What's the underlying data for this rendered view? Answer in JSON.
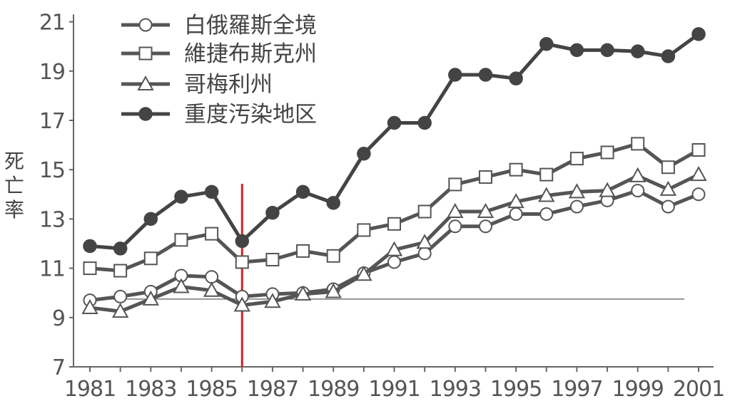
{
  "chart_data": {
    "type": "line",
    "title": "",
    "xlabel": "",
    "ylabel": "死亡率",
    "x": [
      1981,
      1982,
      1983,
      1984,
      1985,
      1986,
      1987,
      1988,
      1989,
      1990,
      1991,
      1992,
      1993,
      1994,
      1995,
      1996,
      1997,
      1998,
      1999,
      2000,
      2001
    ],
    "x_tick_labels": [
      "1981",
      "1983",
      "1985",
      "1987",
      "1989",
      "1991",
      "1993",
      "1995",
      "1997",
      "1999",
      "2001"
    ],
    "xlim": [
      1981,
      2001
    ],
    "y_ticks": [
      7,
      9,
      11,
      13,
      15,
      17,
      19,
      21
    ],
    "ylim": [
      7,
      21.3
    ],
    "grid": false,
    "legend_position": "top-left",
    "reference_line": {
      "y": 9.75,
      "color": "#777777"
    },
    "marker_line": {
      "x": 1986,
      "color": "#d62020"
    },
    "series": [
      {
        "name": "白俄羅斯全境",
        "marker": "circle-open",
        "color": "#555555",
        "values": [
          9.7,
          9.85,
          10.05,
          10.7,
          10.65,
          9.85,
          9.95,
          10.0,
          10.15,
          10.8,
          11.25,
          11.6,
          12.7,
          12.7,
          13.2,
          13.2,
          13.5,
          13.75,
          14.15,
          13.5,
          14.0
        ]
      },
      {
        "name": "維捷布斯克州",
        "marker": "square-open",
        "color": "#555555",
        "values": [
          11.0,
          10.9,
          11.4,
          12.15,
          12.4,
          11.25,
          11.35,
          11.7,
          11.5,
          12.55,
          12.8,
          13.3,
          14.4,
          14.7,
          15.0,
          14.8,
          15.45,
          15.7,
          16.05,
          15.1,
          15.8
        ]
      },
      {
        "name": "哥梅利州",
        "marker": "triangle-open",
        "color": "#555555",
        "values": [
          9.4,
          9.25,
          9.75,
          10.25,
          10.1,
          9.5,
          9.65,
          9.95,
          10.05,
          10.75,
          11.75,
          12.05,
          13.3,
          13.3,
          13.7,
          13.95,
          14.1,
          14.15,
          14.75,
          14.2,
          14.8
        ]
      },
      {
        "name": "重度汚染地区",
        "marker": "circle-filled",
        "color": "#444444",
        "values": [
          11.9,
          11.8,
          13.0,
          13.9,
          14.1,
          12.1,
          13.25,
          14.1,
          13.65,
          15.65,
          16.9,
          16.9,
          18.85,
          18.85,
          18.7,
          20.1,
          19.85,
          19.85,
          19.8,
          19.6,
          20.5
        ]
      }
    ]
  }
}
